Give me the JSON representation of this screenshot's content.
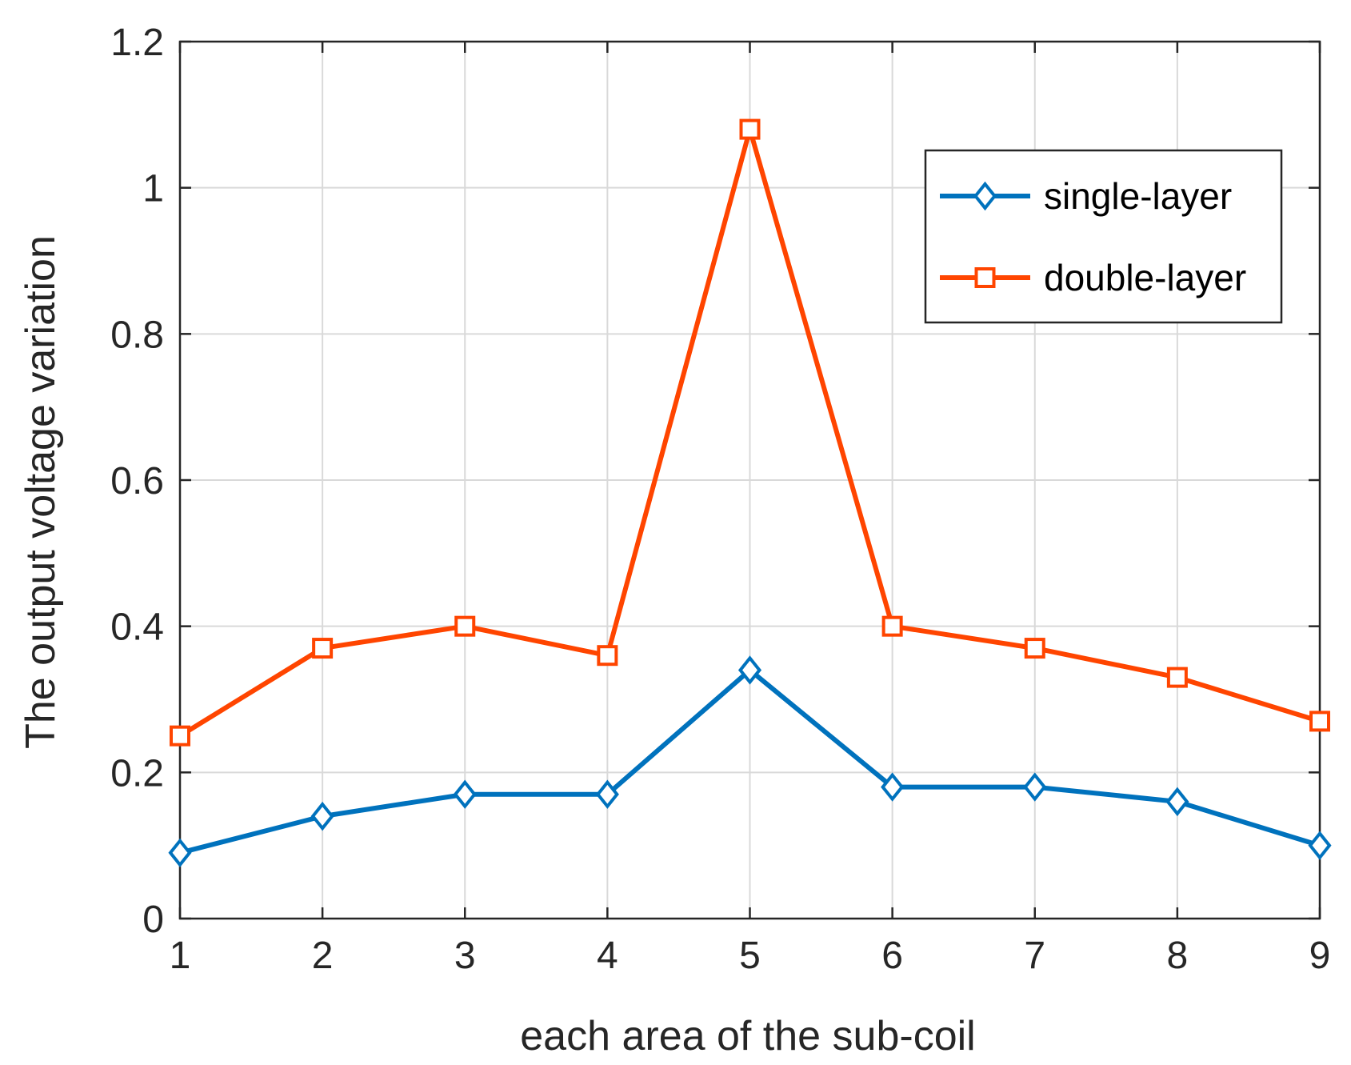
{
  "chart_data": {
    "type": "line",
    "title": "",
    "xlabel": "each area of the sub-coil",
    "ylabel": "The output voltage variation",
    "x": [
      1,
      2,
      3,
      4,
      5,
      6,
      7,
      8,
      9
    ],
    "xlim": [
      1,
      9
    ],
    "ylim": [
      0,
      1.2
    ],
    "xticks": [
      "1",
      "2",
      "3",
      "4",
      "5",
      "6",
      "7",
      "8",
      "9"
    ],
    "yticks": [
      "0",
      "0.2",
      "0.4",
      "0.6",
      "0.8",
      "1",
      "1.2"
    ],
    "grid": true,
    "legend_position": "top-right",
    "series": [
      {
        "name": "single-layer",
        "marker": "diamond",
        "color": "#0072BD",
        "values": [
          0.09,
          0.14,
          0.17,
          0.17,
          0.34,
          0.18,
          0.18,
          0.16,
          0.1
        ]
      },
      {
        "name": "double-layer",
        "marker": "square",
        "color": "#FF4500",
        "values": [
          0.25,
          0.37,
          0.4,
          0.36,
          1.08,
          0.4,
          0.37,
          0.33,
          0.27
        ]
      }
    ]
  }
}
